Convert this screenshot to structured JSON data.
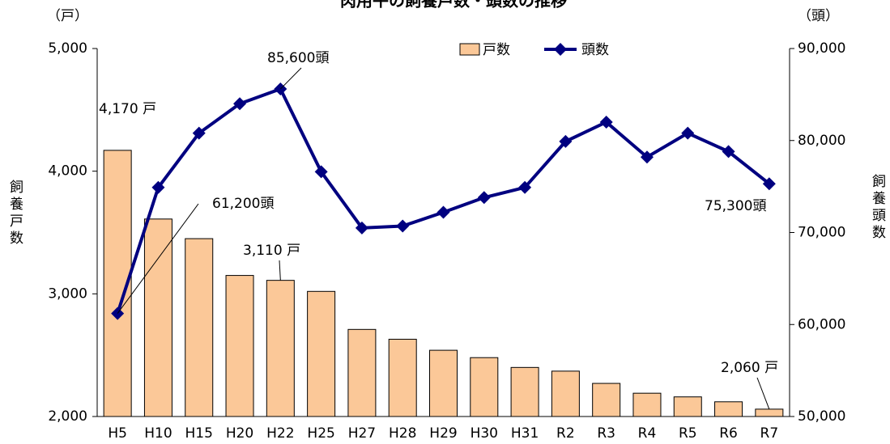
{
  "chart_data": {
    "type": "bar_line",
    "title": "肉用牛の飼養戸数・頭数の推移",
    "y_unit": "（戸）",
    "y2_unit": "（頭）",
    "ylabel": "飼養戸数",
    "y2label": "飼養頭数",
    "categories": [
      "H5",
      "H10",
      "H15",
      "H20",
      "H22",
      "H25",
      "H27",
      "H28",
      "H29",
      "H30",
      "H31",
      "R2",
      "R3",
      "R4",
      "R5",
      "R6",
      "R7"
    ],
    "series": [
      {
        "name": "戸数",
        "type": "bar",
        "color": "#fbc898",
        "edge": "#000000",
        "values": [
          4170,
          3610,
          3450,
          3150,
          3110,
          3020,
          2710,
          2630,
          2540,
          2480,
          2400,
          2370,
          2270,
          2190,
          2160,
          2120,
          2060
        ],
        "value_labels": [
          "4,170 戸",
          null,
          null,
          null,
          "3,110 戸",
          null,
          null,
          null,
          null,
          null,
          null,
          null,
          null,
          null,
          null,
          null,
          "2,060 戸"
        ]
      },
      {
        "name": "頭数",
        "type": "line",
        "axis": "y2",
        "color": "#000080",
        "values": [
          61200,
          74900,
          80800,
          84000,
          85600,
          76600,
          70500,
          70700,
          72200,
          73800,
          74900,
          79900,
          82000,
          78200,
          80800,
          78800,
          75300
        ],
        "value_labels": [
          "61,200頭",
          null,
          null,
          null,
          "85,600頭",
          null,
          null,
          null,
          null,
          null,
          null,
          null,
          null,
          null,
          null,
          null,
          "75,300頭"
        ]
      }
    ],
    "ylim": [
      2000,
      5000
    ],
    "yticks": [
      {
        "value": 2000,
        "label": "2,000"
      },
      {
        "value": 3000,
        "label": "3,000"
      },
      {
        "value": 4000,
        "label": "4,000"
      },
      {
        "value": 5000,
        "label": "5,000"
      }
    ],
    "y2lim": [
      50000,
      90000
    ],
    "y2ticks": [
      {
        "value": 50000,
        "label": "50,000"
      },
      {
        "value": 60000,
        "label": "60,000"
      },
      {
        "value": 70000,
        "label": "70,000"
      },
      {
        "value": 80000,
        "label": "80,000"
      },
      {
        "value": 90000,
        "label": "90,000"
      }
    ],
    "legend": "top"
  }
}
